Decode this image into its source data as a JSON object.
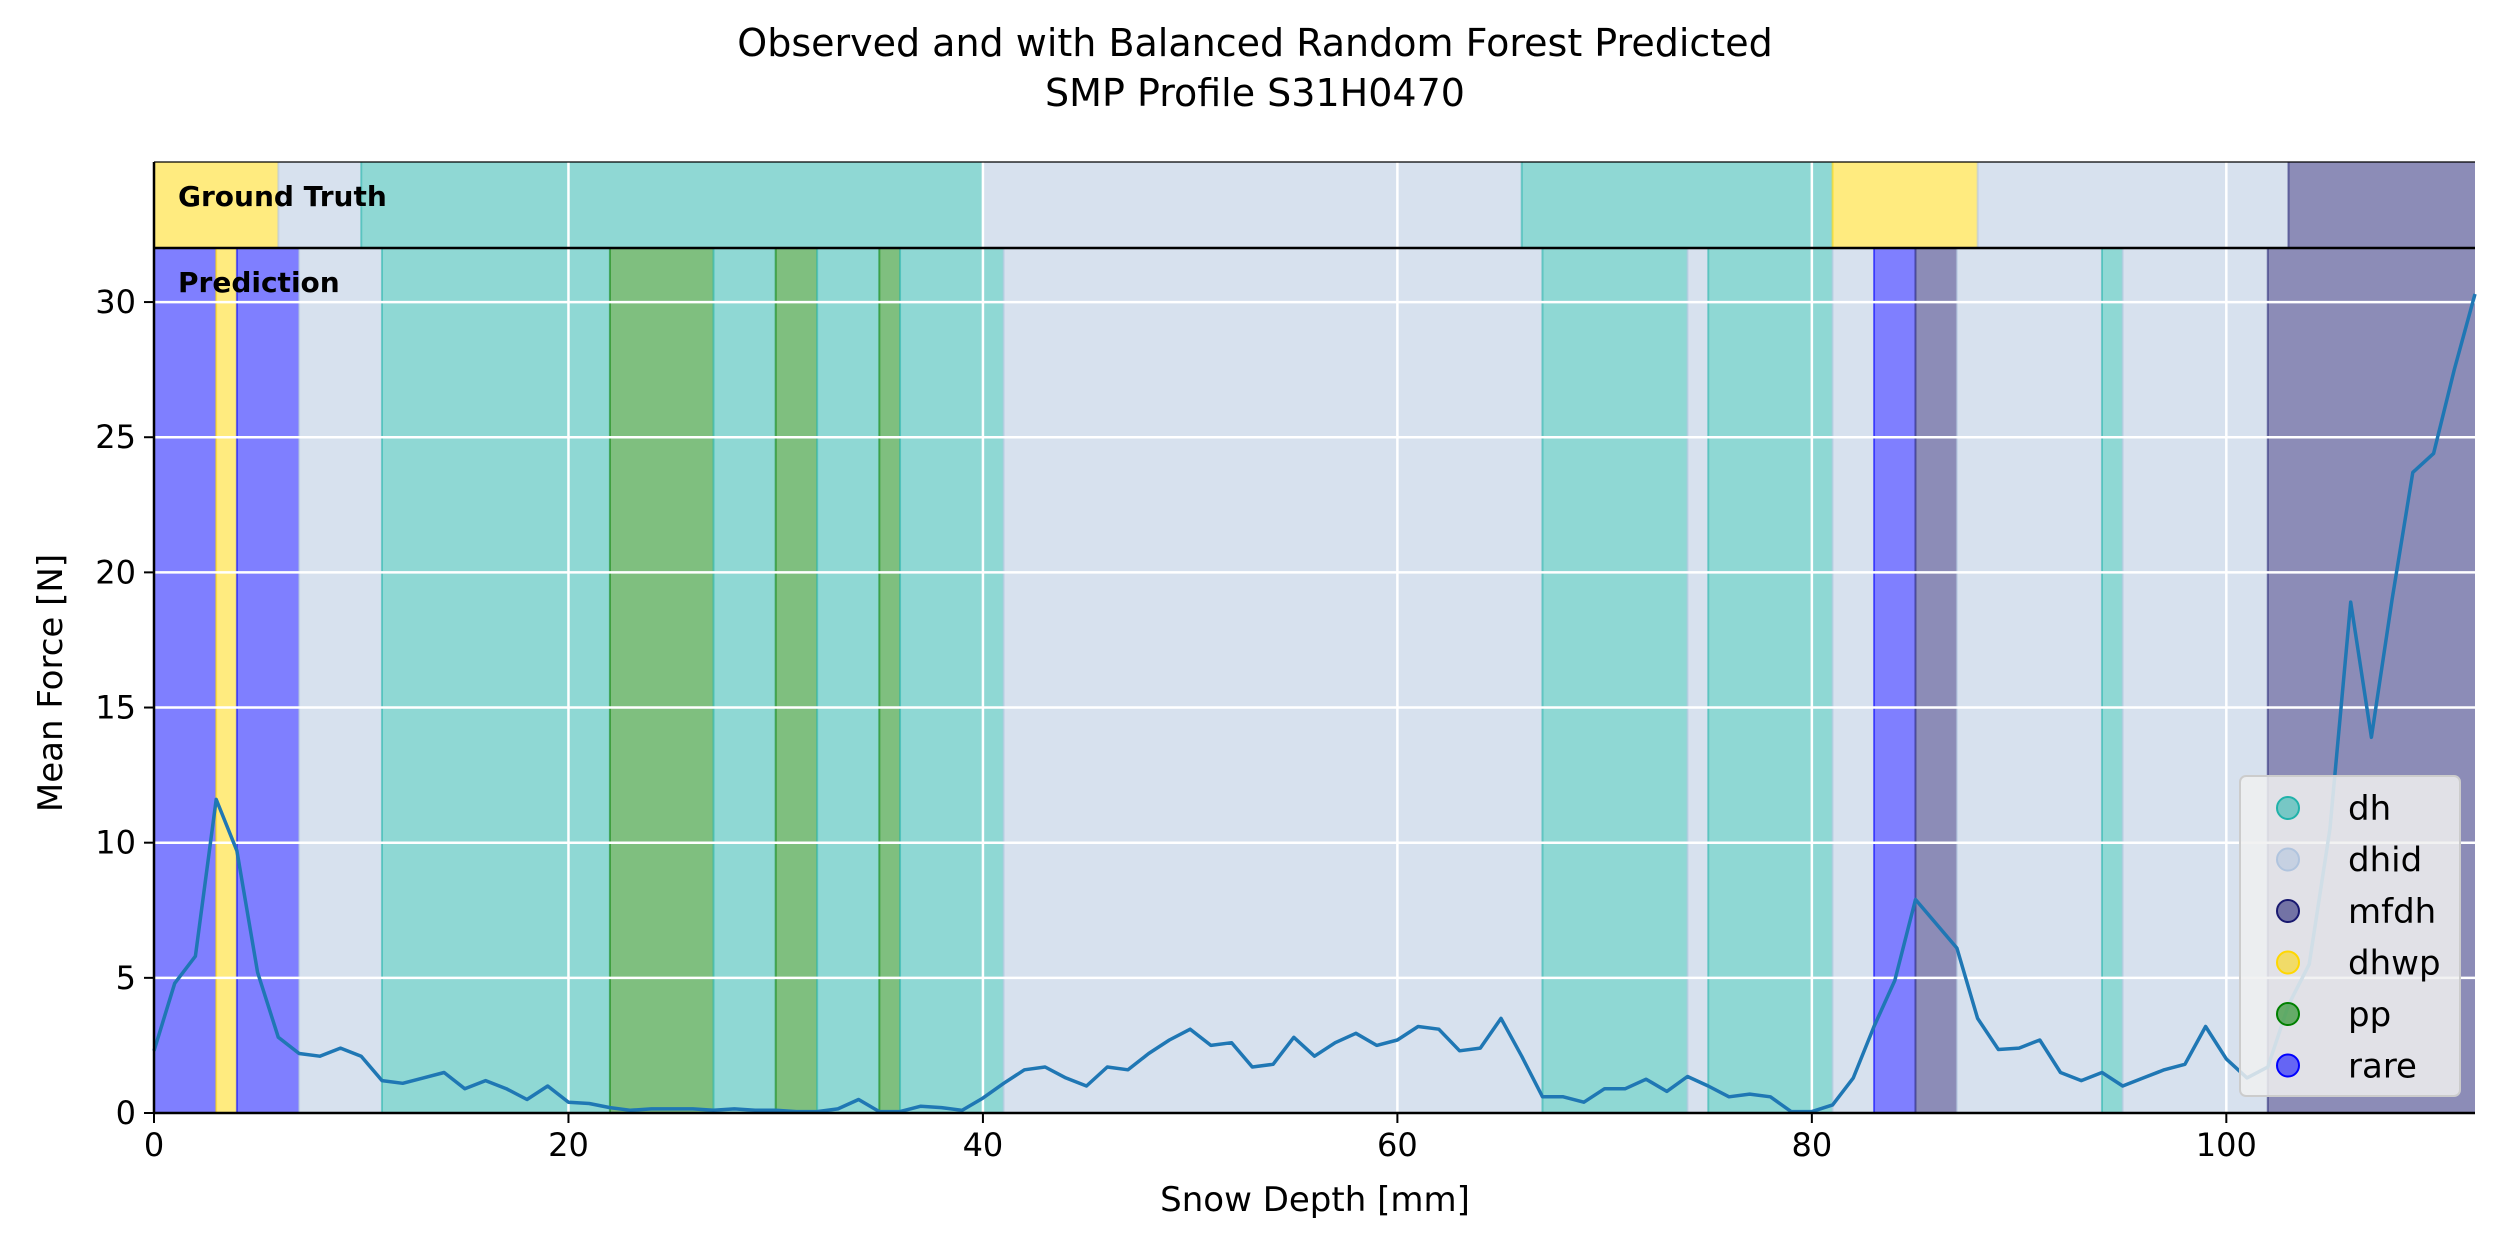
{
  "chart_data": {
    "type": "line",
    "title": [
      "Observed and with Balanced Random Forest Predicted",
      "SMP Profile S31H0470"
    ],
    "xlabel": "Snow Depth [mm]",
    "ylabel": "Mean Force [N]",
    "xlim": [
      0,
      112
    ],
    "ylim": [
      0,
      32
    ],
    "xticks": [
      0,
      20,
      40,
      60,
      80,
      100
    ],
    "yticks": [
      0,
      5,
      10,
      15,
      20,
      25,
      30
    ],
    "grid": true,
    "colors": {
      "dh": "#20b2aa",
      "dhid": "#b0c4de",
      "mfdh": "#191970",
      "dhwp": "#ffd700",
      "pp": "#008000",
      "rare": "#0000ff",
      "line": "#1f77b4"
    },
    "strip_labels": {
      "ground_truth": "Ground Truth",
      "prediction": "Prediction"
    },
    "ground_truth": [
      {
        "start": 0,
        "end": 6,
        "class": "dhwp"
      },
      {
        "start": 6,
        "end": 10,
        "class": "dhid"
      },
      {
        "start": 10,
        "end": 40,
        "class": "dh"
      },
      {
        "start": 40,
        "end": 66,
        "class": "dhid"
      },
      {
        "start": 66,
        "end": 81,
        "class": "dh"
      },
      {
        "start": 81,
        "end": 88,
        "class": "dhwp"
      },
      {
        "start": 88,
        "end": 103,
        "class": "dhid"
      },
      {
        "start": 103,
        "end": 112,
        "class": "mfdh"
      }
    ],
    "prediction": [
      {
        "start": 0,
        "end": 3,
        "class": "rare"
      },
      {
        "start": 3,
        "end": 4,
        "class": "dhwp"
      },
      {
        "start": 4,
        "end": 7,
        "class": "rare"
      },
      {
        "start": 7,
        "end": 11,
        "class": "dhid"
      },
      {
        "start": 11,
        "end": 22,
        "class": "dh"
      },
      {
        "start": 22,
        "end": 27,
        "class": "pp"
      },
      {
        "start": 27,
        "end": 30,
        "class": "dh"
      },
      {
        "start": 30,
        "end": 32,
        "class": "pp"
      },
      {
        "start": 32,
        "end": 35,
        "class": "dh"
      },
      {
        "start": 35,
        "end": 36,
        "class": "pp"
      },
      {
        "start": 36,
        "end": 41,
        "class": "dh"
      },
      {
        "start": 41,
        "end": 67,
        "class": "dhid"
      },
      {
        "start": 67,
        "end": 74,
        "class": "dh"
      },
      {
        "start": 74,
        "end": 75,
        "class": "dhid"
      },
      {
        "start": 75,
        "end": 81,
        "class": "dh"
      },
      {
        "start": 81,
        "end": 83,
        "class": "dhid"
      },
      {
        "start": 83,
        "end": 85,
        "class": "rare"
      },
      {
        "start": 85,
        "end": 87,
        "class": "mfdh"
      },
      {
        "start": 87,
        "end": 94,
        "class": "dhid"
      },
      {
        "start": 94,
        "end": 95,
        "class": "dh"
      },
      {
        "start": 95,
        "end": 102,
        "class": "dhid"
      },
      {
        "start": 102,
        "end": 112,
        "class": "mfdh"
      }
    ],
    "series": [
      {
        "name": "",
        "x": [
          0,
          1,
          2,
          3,
          4,
          5,
          6,
          7,
          8,
          9,
          10,
          11,
          12,
          13,
          14,
          15,
          16,
          17,
          18,
          19,
          20,
          21,
          22,
          23,
          24,
          25,
          26,
          27,
          28,
          29,
          30,
          31,
          32,
          33,
          34,
          35,
          36,
          37,
          38,
          39,
          40,
          41,
          42,
          43,
          44,
          45,
          46,
          47,
          48,
          49,
          50,
          51,
          52,
          53,
          54,
          55,
          56,
          57,
          58,
          59,
          60,
          61,
          62,
          63,
          64,
          65,
          66,
          67,
          68,
          69,
          70,
          71,
          72,
          73,
          74,
          75,
          76,
          77,
          78,
          79,
          80,
          81,
          82,
          83,
          84,
          85,
          86,
          87,
          88,
          89,
          90,
          91,
          92,
          93,
          94,
          95,
          96,
          97,
          98,
          99,
          100,
          101,
          102,
          103,
          104,
          105,
          106,
          107,
          108,
          109,
          110,
          111,
          112
        ],
        "y": [
          2.3,
          4.8,
          5.8,
          11.6,
          9.7,
          5.2,
          2.8,
          2.2,
          2.1,
          2.4,
          2.1,
          1.2,
          1.1,
          1.3,
          1.5,
          0.9,
          1.2,
          0.9,
          0.5,
          1.0,
          0.4,
          0.35,
          0.2,
          0.1,
          0.15,
          0.15,
          0.15,
          0.1,
          0.15,
          0.1,
          0.1,
          0.05,
          0.05,
          0.15,
          0.5,
          0.05,
          0.05,
          0.25,
          0.2,
          0.1,
          0.55,
          1.1,
          1.6,
          1.7,
          1.3,
          1.0,
          1.7,
          1.6,
          2.2,
          2.7,
          3.1,
          2.5,
          2.6,
          1.7,
          1.8,
          2.8,
          2.1,
          2.6,
          2.95,
          2.5,
          2.7,
          3.2,
          3.1,
          2.3,
          2.4,
          3.5,
          2.1,
          0.6,
          0.6,
          0.4,
          0.9,
          0.9,
          1.25,
          0.8,
          1.35,
          1.0,
          0.6,
          0.7,
          0.6,
          0.05,
          0.05,
          0.3,
          1.3,
          3.2,
          4.9,
          7.9,
          7.0,
          6.1,
          3.5,
          2.35,
          2.4,
          2.7,
          1.5,
          1.2,
          1.5,
          1.0,
          1.3,
          1.6,
          1.8,
          3.2,
          2.0,
          1.3,
          1.7,
          4.0,
          5.5,
          10.5,
          18.9,
          13.9,
          19.0,
          23.7,
          24.4,
          27.5,
          30.3
        ]
      }
    ],
    "legend": {
      "placement": "lower-right",
      "entries": [
        "dh",
        "dhid",
        "mfdh",
        "dhwp",
        "pp",
        "rare"
      ]
    }
  }
}
